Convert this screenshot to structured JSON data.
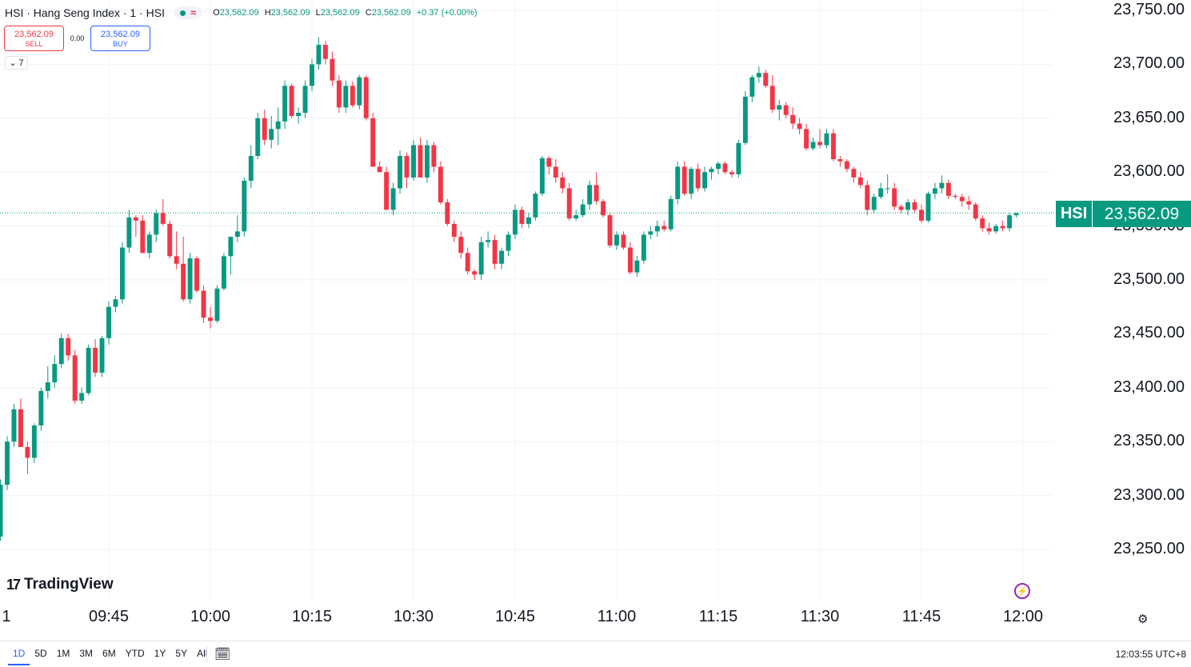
{
  "header": {
    "symbol_title": "HSI · Hang Seng Index · 1 · HSI",
    "status_wave": "≈",
    "ohlc": [
      {
        "key": "O",
        "value": "23,562.09"
      },
      {
        "key": "H",
        "value": "23,562.09"
      },
      {
        "key": "L",
        "value": "23,562.09"
      },
      {
        "key": "C",
        "value": "23,562.09"
      }
    ],
    "change": "+0.37 (+0.00%)"
  },
  "trade": {
    "sell_price": "23,562.09",
    "sell_label": "SELL",
    "spread": "0.00",
    "buy_price": "23,562.09",
    "buy_label": "BUY"
  },
  "indicators_collapse": {
    "count": "7"
  },
  "last_price": {
    "symbol": "HSI",
    "value": "23,562.09"
  },
  "branding": {
    "logo_mark": "17",
    "logo_text": "TradingView"
  },
  "bottom_bar": {
    "ranges": [
      "1D",
      "5D",
      "1M",
      "3M",
      "6M",
      "YTD",
      "1Y",
      "5Y",
      "All"
    ],
    "active_range": "1D",
    "clock": "12:03:55 UTC+8"
  },
  "colors": {
    "up": "#089981",
    "down": "#f23645",
    "grid": "#f0f3fa",
    "accent": "#2962ff"
  },
  "chart_data": {
    "type": "candlestick",
    "title": "HSI · Hang Seng Index · 1 · HSI",
    "interval": "1 minute",
    "ylim": [
      23230,
      23760
    ],
    "y_ticks": [
      23250,
      23300,
      23350,
      23400,
      23450,
      23500,
      23550,
      23600,
      23650,
      23700,
      23750
    ],
    "y_tick_labels": [
      "23,250.00",
      "23,300.00",
      "23,350.00",
      "23,400.00",
      "23,450.00",
      "23,500.00",
      "23,550.00",
      "23,600.00",
      "23,650.00",
      "23,700.00",
      "23,750.00"
    ],
    "x_tick_labels": [
      "1",
      "09:45",
      "10:00",
      "10:15",
      "10:30",
      "10:45",
      "11:00",
      "11:15",
      "11:30",
      "11:45",
      "12:00"
    ],
    "x_tick_minutes": [
      9.5,
      30,
      45,
      60,
      75,
      90,
      105,
      120,
      135,
      150,
      165
    ],
    "last_price": 23562.09,
    "grid": true,
    "candles_start_minute": 9,
    "candles_interval_minutes": 1,
    "candles": [
      [
        23275,
        23275,
        23240,
        23270
      ],
      [
        23270,
        23330,
        23265,
        23300
      ],
      [
        23300,
        23330,
        23285,
        23315
      ],
      [
        23312,
        23340,
        23290,
        23285
      ],
      [
        23285,
        23290,
        23260,
        23262
      ],
      [
        23262,
        23315,
        23258,
        23310
      ],
      [
        23310,
        23355,
        23305,
        23350
      ],
      [
        23350,
        23385,
        23345,
        23380
      ],
      [
        23380,
        23390,
        23345,
        23345
      ],
      [
        23345,
        23350,
        23320,
        23335
      ],
      [
        23335,
        23367,
        23330,
        23365
      ],
      [
        23365,
        23400,
        23360,
        23397
      ],
      [
        23397,
        23420,
        23390,
        23405
      ],
      [
        23405,
        23430,
        23400,
        23422
      ],
      [
        23422,
        23450,
        23418,
        23446
      ],
      [
        23446,
        23450,
        23425,
        23430
      ],
      [
        23430,
        23435,
        23385,
        23388
      ],
      [
        23388,
        23400,
        23385,
        23395
      ],
      [
        23395,
        23440,
        23393,
        23437
      ],
      [
        23437,
        23445,
        23410,
        23414
      ],
      [
        23414,
        23448,
        23410,
        23446
      ],
      [
        23446,
        23480,
        23440,
        23475
      ],
      [
        23475,
        23485,
        23470,
        23482
      ],
      [
        23482,
        23535,
        23478,
        23530
      ],
      [
        23530,
        23565,
        23525,
        23558
      ],
      [
        23558,
        23560,
        23540,
        23555
      ],
      [
        23555,
        23560,
        23525,
        23525
      ],
      [
        23525,
        23545,
        23520,
        23542
      ],
      [
        23542,
        23565,
        23535,
        23562
      ],
      [
        23562,
        23575,
        23550,
        23552
      ],
      [
        23552,
        23555,
        23520,
        23522
      ],
      [
        23522,
        23545,
        23510,
        23515
      ],
      [
        23515,
        23540,
        23480,
        23482
      ],
      [
        23482,
        23525,
        23478,
        23520
      ],
      [
        23520,
        23522,
        23488,
        23490
      ],
      [
        23490,
        23495,
        23460,
        23465
      ],
      [
        23465,
        23475,
        23455,
        23462
      ],
      [
        23462,
        23495,
        23460,
        23492
      ],
      [
        23492,
        23525,
        23490,
        23522
      ],
      [
        23522,
        23540,
        23505,
        23540
      ],
      [
        23540,
        23560,
        23535,
        23545
      ],
      [
        23545,
        23595,
        23540,
        23592
      ],
      [
        23592,
        23625,
        23585,
        23615
      ],
      [
        23615,
        23655,
        23612,
        23650
      ],
      [
        23650,
        23658,
        23625,
        23630
      ],
      [
        23630,
        23652,
        23622,
        23640
      ],
      [
        23640,
        23660,
        23625,
        23647
      ],
      [
        23647,
        23685,
        23640,
        23680
      ],
      [
        23680,
        23682,
        23650,
        23652
      ],
      [
        23652,
        23660,
        23645,
        23655
      ],
      [
        23655,
        23685,
        23650,
        23680
      ],
      [
        23680,
        23705,
        23675,
        23700
      ],
      [
        23700,
        23725,
        23695,
        23718
      ],
      [
        23718,
        23722,
        23700,
        23705
      ],
      [
        23705,
        23712,
        23680,
        23685
      ],
      [
        23685,
        23690,
        23655,
        23660
      ],
      [
        23660,
        23685,
        23655,
        23680
      ],
      [
        23680,
        23684,
        23660,
        23662
      ],
      [
        23662,
        23690,
        23658,
        23688
      ],
      [
        23688,
        23690,
        23648,
        23650
      ],
      [
        23650,
        23655,
        23605,
        23605
      ],
      [
        23605,
        23610,
        23600,
        23600
      ],
      [
        23600,
        23605,
        23565,
        23565
      ],
      [
        23565,
        23590,
        23560,
        23585
      ],
      [
        23585,
        23620,
        23580,
        23615
      ],
      [
        23615,
        23618,
        23585,
        23595
      ],
      [
        23595,
        23630,
        23592,
        23625
      ],
      [
        23625,
        23632,
        23595,
        23595
      ],
      [
        23595,
        23630,
        23590,
        23625
      ],
      [
        23625,
        23628,
        23600,
        23605
      ],
      [
        23605,
        23610,
        23570,
        23572
      ],
      [
        23572,
        23575,
        23550,
        23552
      ],
      [
        23552,
        23555,
        23535,
        23540
      ],
      [
        23540,
        23545,
        23520,
        23525
      ],
      [
        23525,
        23530,
        23505,
        23508
      ],
      [
        23508,
        23510,
        23500,
        23505
      ],
      [
        23505,
        23540,
        23500,
        23535
      ],
      [
        23535,
        23545,
        23530,
        23537
      ],
      [
        23537,
        23542,
        23510,
        23515
      ],
      [
        23515,
        23530,
        23510,
        23527
      ],
      [
        23527,
        23545,
        23522,
        23542
      ],
      [
        23542,
        23570,
        23538,
        23565
      ],
      [
        23565,
        23568,
        23548,
        23552
      ],
      [
        23552,
        23562,
        23548,
        23558
      ],
      [
        23558,
        23582,
        23555,
        23580
      ],
      [
        23580,
        23615,
        23578,
        23613
      ],
      [
        23613,
        23615,
        23598,
        23605
      ],
      [
        23605,
        23612,
        23590,
        23595
      ],
      [
        23595,
        23600,
        23580,
        23585
      ],
      [
        23585,
        23590,
        23555,
        23557
      ],
      [
        23557,
        23565,
        23555,
        23560
      ],
      [
        23560,
        23575,
        23558,
        23570
      ],
      [
        23570,
        23592,
        23565,
        23588
      ],
      [
        23588,
        23600,
        23570,
        23573
      ],
      [
        23573,
        23575,
        23558,
        23560
      ],
      [
        23560,
        23562,
        23530,
        23532
      ],
      [
        23532,
        23545,
        23528,
        23542
      ],
      [
        23542,
        23545,
        23528,
        23530
      ],
      [
        23530,
        23535,
        23505,
        23507
      ],
      [
        23507,
        23522,
        23503,
        23518
      ],
      [
        23518,
        23545,
        23515,
        23542
      ],
      [
        23542,
        23550,
        23538,
        23545
      ],
      [
        23545,
        23555,
        23540,
        23550
      ],
      [
        23550,
        23555,
        23545,
        23547
      ],
      [
        23547,
        23578,
        23545,
        23575
      ],
      [
        23575,
        23610,
        23570,
        23605
      ],
      [
        23605,
        23610,
        23578,
        23580
      ],
      [
        23580,
        23605,
        23575,
        23603
      ],
      [
        23603,
        23608,
        23582,
        23585
      ],
      [
        23585,
        23605,
        23582,
        23600
      ],
      [
        23600,
        23605,
        23593,
        23603
      ],
      [
        23603,
        23610,
        23598,
        23608
      ],
      [
        23608,
        23610,
        23598,
        23600
      ],
      [
        23600,
        23602,
        23595,
        23598
      ],
      [
        23598,
        23630,
        23595,
        23627
      ],
      [
        23627,
        23675,
        23625,
        23670
      ],
      [
        23670,
        23690,
        23665,
        23688
      ],
      [
        23688,
        23698,
        23683,
        23692
      ],
      [
        23692,
        23695,
        23678,
        23680
      ],
      [
        23680,
        23690,
        23655,
        23658
      ],
      [
        23658,
        23667,
        23648,
        23662
      ],
      [
        23662,
        23665,
        23650,
        23653
      ],
      [
        23653,
        23660,
        23640,
        23645
      ],
      [
        23645,
        23650,
        23635,
        23640
      ],
      [
        23640,
        23645,
        23620,
        23622
      ],
      [
        23622,
        23632,
        23620,
        23628
      ],
      [
        23628,
        23640,
        23622,
        23625
      ],
      [
        23625,
        23640,
        23622,
        23636
      ],
      [
        23636,
        23640,
        23610,
        23612
      ],
      [
        23612,
        23615,
        23605,
        23610
      ],
      [
        23610,
        23612,
        23600,
        23603
      ],
      [
        23603,
        23605,
        23590,
        23595
      ],
      [
        23595,
        23600,
        23585,
        23588
      ],
      [
        23588,
        23592,
        23560,
        23565
      ],
      [
        23565,
        23580,
        23562,
        23577
      ],
      [
        23577,
        23590,
        23575,
        23585
      ],
      [
        23585,
        23598,
        23580,
        23585
      ],
      [
        23585,
        23590,
        23565,
        23568
      ],
      [
        23568,
        23570,
        23562,
        23565
      ],
      [
        23565,
        23575,
        23560,
        23572
      ],
      [
        23572,
        23575,
        23562,
        23565
      ],
      [
        23565,
        23570,
        23553,
        23555
      ],
      [
        23555,
        23582,
        23553,
        23580
      ],
      [
        23580,
        23590,
        23575,
        23585
      ],
      [
        23585,
        23597,
        23580,
        23590
      ],
      [
        23590,
        23593,
        23575,
        23578
      ],
      [
        23578,
        23580,
        23575,
        23577
      ],
      [
        23577,
        23580,
        23568,
        23573
      ],
      [
        23573,
        23578,
        23565,
        23570
      ],
      [
        23570,
        23572,
        23555,
        23557
      ],
      [
        23557,
        23560,
        23545,
        23548
      ],
      [
        23548,
        23553,
        23542,
        23545
      ],
      [
        23545,
        23552,
        23543,
        23550
      ],
      [
        23550,
        23555,
        23545,
        23548
      ],
      [
        23548,
        23562,
        23545,
        23560
      ],
      [
        23560,
        23562,
        23558,
        23562
      ]
    ]
  }
}
